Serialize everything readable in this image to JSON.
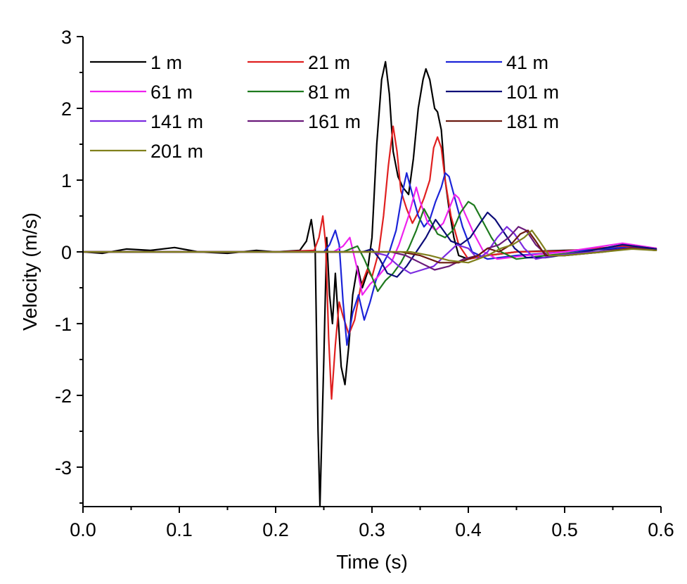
{
  "chart_data": {
    "type": "line",
    "title": "",
    "xlabel": "Time (s)",
    "ylabel": "Velocity (m/s)",
    "xlim": [
      0.0,
      0.6
    ],
    "ylim": [
      -3.55,
      3.0
    ],
    "x_ticks": [
      0.0,
      0.1,
      0.2,
      0.3,
      0.4,
      0.5,
      0.6
    ],
    "x_tick_labels": [
      "0.0",
      "0.1",
      "0.2",
      "0.3",
      "0.4",
      "0.5",
      "0.6"
    ],
    "y_ticks": [
      -3,
      -2,
      -1,
      0,
      1,
      2,
      3
    ],
    "y_tick_labels": [
      "-3",
      "-2",
      "-1",
      "0",
      "1",
      "2",
      "3"
    ],
    "grid": false,
    "legend_position": "top-left",
    "legend_columns": 3,
    "series": [
      {
        "name": "1 m",
        "color": "#000000",
        "points": [
          [
            0,
            0
          ],
          [
            0.02,
            -0.02
          ],
          [
            0.045,
            0.04
          ],
          [
            0.07,
            0.02
          ],
          [
            0.095,
            0.06
          ],
          [
            0.12,
            0
          ],
          [
            0.15,
            -0.02
          ],
          [
            0.18,
            0.02
          ],
          [
            0.2,
            0
          ],
          [
            0.225,
            0.02
          ],
          [
            0.232,
            0.15
          ],
          [
            0.237,
            0.45
          ],
          [
            0.241,
            0.05
          ],
          [
            0.244,
            -2.5
          ],
          [
            0.246,
            -3.55
          ],
          [
            0.25,
            -1.5
          ],
          [
            0.253,
            0.2
          ],
          [
            0.256,
            -0.6
          ],
          [
            0.259,
            -1.0
          ],
          [
            0.262,
            -0.3
          ],
          [
            0.265,
            -0.95
          ],
          [
            0.268,
            -1.6
          ],
          [
            0.272,
            -1.85
          ],
          [
            0.276,
            -1.3
          ],
          [
            0.28,
            -0.6
          ],
          [
            0.285,
            -0.2
          ],
          [
            0.29,
            -0.5
          ],
          [
            0.295,
            -0.3
          ],
          [
            0.3,
            0.2
          ],
          [
            0.305,
            1.5
          ],
          [
            0.31,
            2.4
          ],
          [
            0.314,
            2.65
          ],
          [
            0.318,
            2.2
          ],
          [
            0.322,
            1.4
          ],
          [
            0.327,
            1.05
          ],
          [
            0.332,
            0.9
          ],
          [
            0.338,
            0.8
          ],
          [
            0.343,
            1.3
          ],
          [
            0.348,
            2.0
          ],
          [
            0.353,
            2.4
          ],
          [
            0.356,
            2.55
          ],
          [
            0.36,
            2.4
          ],
          [
            0.365,
            2.0
          ],
          [
            0.368,
            1.95
          ],
          [
            0.372,
            1.7
          ],
          [
            0.376,
            1.0
          ],
          [
            0.38,
            0.6
          ],
          [
            0.385,
            0.2
          ],
          [
            0.39,
            -0.05
          ],
          [
            0.4,
            -0.1
          ],
          [
            0.42,
            -0.05
          ],
          [
            0.45,
            0
          ],
          [
            0.5,
            0.02
          ],
          [
            0.55,
            0.04
          ],
          [
            0.58,
            0.06
          ],
          [
            0.595,
            0.03
          ]
        ]
      },
      {
        "name": "21 m",
        "color": "#e02020",
        "points": [
          [
            0,
            0
          ],
          [
            0.2,
            0
          ],
          [
            0.24,
            0.02
          ],
          [
            0.245,
            0.2
          ],
          [
            0.249,
            0.5
          ],
          [
            0.252,
            0.1
          ],
          [
            0.255,
            -1.2
          ],
          [
            0.258,
            -2.05
          ],
          [
            0.262,
            -1.3
          ],
          [
            0.266,
            -0.7
          ],
          [
            0.27,
            -0.9
          ],
          [
            0.276,
            -1.15
          ],
          [
            0.282,
            -0.95
          ],
          [
            0.288,
            -0.5
          ],
          [
            0.295,
            -0.25
          ],
          [
            0.3,
            -0.35
          ],
          [
            0.307,
            0
          ],
          [
            0.312,
            0.5
          ],
          [
            0.317,
            1.2
          ],
          [
            0.322,
            1.75
          ],
          [
            0.326,
            1.4
          ],
          [
            0.33,
            0.85
          ],
          [
            0.336,
            0.6
          ],
          [
            0.342,
            0.4
          ],
          [
            0.348,
            0.55
          ],
          [
            0.354,
            0.75
          ],
          [
            0.36,
            1.0
          ],
          [
            0.364,
            1.45
          ],
          [
            0.368,
            1.6
          ],
          [
            0.372,
            1.45
          ],
          [
            0.376,
            1.0
          ],
          [
            0.382,
            0.5
          ],
          [
            0.39,
            0.1
          ],
          [
            0.4,
            -0.1
          ],
          [
            0.42,
            -0.05
          ],
          [
            0.45,
            0
          ],
          [
            0.5,
            0.01
          ],
          [
            0.56,
            0.08
          ],
          [
            0.595,
            0.05
          ]
        ]
      },
      {
        "name": "41 m",
        "color": "#1c24d8",
        "points": [
          [
            0,
            0
          ],
          [
            0.25,
            0
          ],
          [
            0.256,
            0.1
          ],
          [
            0.262,
            0.3
          ],
          [
            0.266,
            0.1
          ],
          [
            0.27,
            -0.7
          ],
          [
            0.274,
            -1.3
          ],
          [
            0.28,
            -0.85
          ],
          [
            0.286,
            -0.6
          ],
          [
            0.292,
            -0.95
          ],
          [
            0.298,
            -0.7
          ],
          [
            0.304,
            -0.4
          ],
          [
            0.31,
            -0.2
          ],
          [
            0.318,
            0
          ],
          [
            0.325,
            0.3
          ],
          [
            0.332,
            0.85
          ],
          [
            0.336,
            1.1
          ],
          [
            0.342,
            0.8
          ],
          [
            0.348,
            0.5
          ],
          [
            0.354,
            0.35
          ],
          [
            0.36,
            0.45
          ],
          [
            0.366,
            0.7
          ],
          [
            0.372,
            0.9
          ],
          [
            0.376,
            1.1
          ],
          [
            0.38,
            1.05
          ],
          [
            0.386,
            0.75
          ],
          [
            0.394,
            0.35
          ],
          [
            0.404,
            0
          ],
          [
            0.42,
            -0.1
          ],
          [
            0.45,
            -0.05
          ],
          [
            0.5,
            0
          ],
          [
            0.56,
            0.06
          ],
          [
            0.595,
            0.03
          ]
        ]
      },
      {
        "name": "61 m",
        "color": "#ee22ee",
        "points": [
          [
            0,
            0
          ],
          [
            0.26,
            0
          ],
          [
            0.27,
            0.08
          ],
          [
            0.277,
            0.2
          ],
          [
            0.284,
            -0.2
          ],
          [
            0.29,
            -0.6
          ],
          [
            0.298,
            -0.45
          ],
          [
            0.306,
            -0.35
          ],
          [
            0.312,
            -0.25
          ],
          [
            0.32,
            -0.15
          ],
          [
            0.328,
            0.1
          ],
          [
            0.338,
            0.5
          ],
          [
            0.346,
            0.9
          ],
          [
            0.35,
            0.7
          ],
          [
            0.358,
            0.4
          ],
          [
            0.366,
            0.3
          ],
          [
            0.374,
            0.4
          ],
          [
            0.38,
            0.6
          ],
          [
            0.386,
            0.8
          ],
          [
            0.39,
            0.75
          ],
          [
            0.396,
            0.55
          ],
          [
            0.406,
            0.25
          ],
          [
            0.416,
            0
          ],
          [
            0.43,
            -0.1
          ],
          [
            0.46,
            -0.05
          ],
          [
            0.5,
            0
          ],
          [
            0.56,
            0.12
          ],
          [
            0.595,
            0.05
          ]
        ]
      },
      {
        "name": "81 m",
        "color": "#1e7a1e",
        "points": [
          [
            0,
            0
          ],
          [
            0.27,
            0
          ],
          [
            0.285,
            0.08
          ],
          [
            0.292,
            -0.1
          ],
          [
            0.3,
            -0.35
          ],
          [
            0.306,
            -0.55
          ],
          [
            0.314,
            -0.4
          ],
          [
            0.322,
            -0.3
          ],
          [
            0.33,
            -0.15
          ],
          [
            0.338,
            0.05
          ],
          [
            0.346,
            0.3
          ],
          [
            0.354,
            0.6
          ],
          [
            0.36,
            0.45
          ],
          [
            0.368,
            0.25
          ],
          [
            0.376,
            0.2
          ],
          [
            0.384,
            0.3
          ],
          [
            0.392,
            0.55
          ],
          [
            0.4,
            0.7
          ],
          [
            0.406,
            0.65
          ],
          [
            0.414,
            0.45
          ],
          [
            0.424,
            0.2
          ],
          [
            0.434,
            0
          ],
          [
            0.45,
            -0.1
          ],
          [
            0.48,
            -0.05
          ],
          [
            0.52,
            0
          ],
          [
            0.56,
            0.1
          ],
          [
            0.595,
            0.04
          ]
        ]
      },
      {
        "name": "101 m",
        "color": "#0c0c78",
        "points": [
          [
            0,
            0
          ],
          [
            0.29,
            0
          ],
          [
            0.3,
            0.04
          ],
          [
            0.308,
            -0.1
          ],
          [
            0.316,
            -0.3
          ],
          [
            0.326,
            -0.35
          ],
          [
            0.336,
            -0.2
          ],
          [
            0.346,
            0
          ],
          [
            0.356,
            0.2
          ],
          [
            0.366,
            0.45
          ],
          [
            0.374,
            0.3
          ],
          [
            0.382,
            0.15
          ],
          [
            0.392,
            0.1
          ],
          [
            0.402,
            0.2
          ],
          [
            0.412,
            0.4
          ],
          [
            0.42,
            0.55
          ],
          [
            0.428,
            0.45
          ],
          [
            0.438,
            0.25
          ],
          [
            0.448,
            0.05
          ],
          [
            0.46,
            -0.08
          ],
          [
            0.48,
            -0.08
          ],
          [
            0.52,
            0
          ],
          [
            0.56,
            0.1
          ],
          [
            0.595,
            0.04
          ]
        ]
      },
      {
        "name": "141 m",
        "color": "#7b2be0",
        "points": [
          [
            0,
            0
          ],
          [
            0.3,
            0
          ],
          [
            0.315,
            -0.05
          ],
          [
            0.328,
            -0.2
          ],
          [
            0.34,
            -0.3
          ],
          [
            0.352,
            -0.25
          ],
          [
            0.364,
            -0.2
          ],
          [
            0.376,
            -0.05
          ],
          [
            0.388,
            0.1
          ],
          [
            0.4,
            0.05
          ],
          [
            0.41,
            -0.1
          ],
          [
            0.42,
            0
          ],
          [
            0.43,
            0.2
          ],
          [
            0.44,
            0.35
          ],
          [
            0.448,
            0.25
          ],
          [
            0.458,
            0.05
          ],
          [
            0.47,
            -0.1
          ],
          [
            0.49,
            -0.05
          ],
          [
            0.53,
            0
          ],
          [
            0.57,
            0.05
          ],
          [
            0.595,
            0.02
          ]
        ]
      },
      {
        "name": "161 m",
        "color": "#6a1a7a",
        "points": [
          [
            0,
            0
          ],
          [
            0.32,
            0
          ],
          [
            0.335,
            -0.05
          ],
          [
            0.35,
            -0.15
          ],
          [
            0.365,
            -0.25
          ],
          [
            0.38,
            -0.2
          ],
          [
            0.395,
            -0.1
          ],
          [
            0.41,
            -0.05
          ],
          [
            0.42,
            0.05
          ],
          [
            0.432,
            0.1
          ],
          [
            0.442,
            0.2
          ],
          [
            0.452,
            0.35
          ],
          [
            0.46,
            0.3
          ],
          [
            0.47,
            0.1
          ],
          [
            0.482,
            -0.05
          ],
          [
            0.5,
            -0.05
          ],
          [
            0.54,
            0
          ],
          [
            0.57,
            0.06
          ],
          [
            0.595,
            0.02
          ]
        ]
      },
      {
        "name": "181 m",
        "color": "#6b1a10",
        "points": [
          [
            0,
            0
          ],
          [
            0.33,
            0
          ],
          [
            0.35,
            -0.05
          ],
          [
            0.37,
            -0.15
          ],
          [
            0.39,
            -0.15
          ],
          [
            0.41,
            -0.05
          ],
          [
            0.42,
            0.05
          ],
          [
            0.432,
            0
          ],
          [
            0.444,
            0.1
          ],
          [
            0.454,
            0.25
          ],
          [
            0.462,
            0.3
          ],
          [
            0.47,
            0.15
          ],
          [
            0.48,
            -0.05
          ],
          [
            0.5,
            -0.05
          ],
          [
            0.54,
            0
          ],
          [
            0.57,
            0.05
          ],
          [
            0.595,
            0.02
          ]
        ]
      },
      {
        "name": "201 m",
        "color": "#80801c",
        "points": [
          [
            0,
            0
          ],
          [
            0.34,
            0
          ],
          [
            0.36,
            -0.05
          ],
          [
            0.38,
            -0.12
          ],
          [
            0.4,
            -0.15
          ],
          [
            0.42,
            -0.05
          ],
          [
            0.434,
            0.05
          ],
          [
            0.446,
            0.1
          ],
          [
            0.458,
            0.2
          ],
          [
            0.466,
            0.3
          ],
          [
            0.474,
            0.15
          ],
          [
            0.484,
            -0.05
          ],
          [
            0.5,
            -0.05
          ],
          [
            0.54,
            0
          ],
          [
            0.57,
            0.04
          ],
          [
            0.595,
            0.02
          ]
        ]
      }
    ]
  }
}
